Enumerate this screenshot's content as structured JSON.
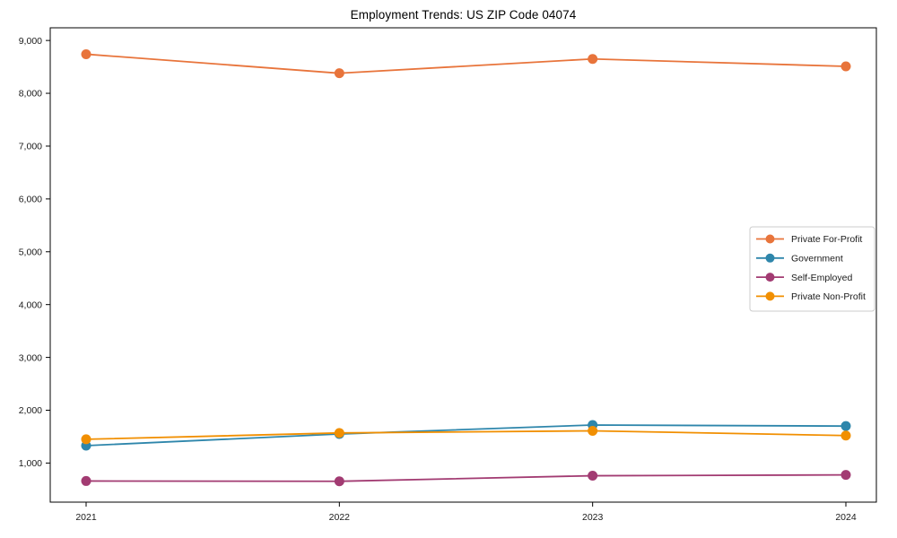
{
  "chart_data": {
    "type": "line",
    "title": "Employment Trends: US ZIP Code 04074",
    "xlabel": "",
    "ylabel": "",
    "categories": [
      "2021",
      "2022",
      "2023",
      "2024"
    ],
    "series": [
      {
        "name": "Private For-Profit",
        "color": "#e8743b",
        "values": [
          8740,
          8380,
          8650,
          8510
        ]
      },
      {
        "name": "Government",
        "color": "#2e86ab",
        "values": [
          1330,
          1550,
          1720,
          1700
        ]
      },
      {
        "name": "Self-Employed",
        "color": "#a23b72",
        "values": [
          660,
          655,
          760,
          775
        ]
      },
      {
        "name": "Private Non-Profit",
        "color": "#f18f01",
        "values": [
          1450,
          1570,
          1610,
          1520
        ]
      }
    ],
    "y_ticks": {
      "values": [
        1000,
        2000,
        3000,
        4000,
        5000,
        6000,
        7000,
        8000,
        9000
      ],
      "labels": [
        "1,000",
        "2,000",
        "3,000",
        "4,000",
        "5,000",
        "6,000",
        "7,000",
        "8,000",
        "9,000"
      ]
    },
    "ylim": [
      260,
      9240
    ],
    "grid": false,
    "legend_position": "center-right-inside",
    "marker": "circle",
    "line_width": 1.8,
    "marker_radius": 5.5,
    "axis_color": "#000000",
    "text_color": "#1a1a1a",
    "legend_border_color": "#cccccc",
    "background": "#ffffff"
  }
}
